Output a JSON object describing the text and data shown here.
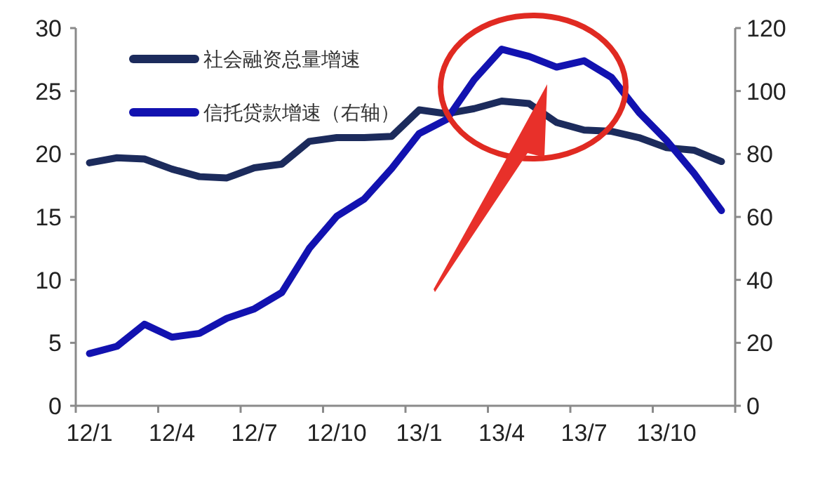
{
  "chart_data": {
    "type": "line",
    "categories": [
      "12/1",
      null,
      null,
      "12/4",
      null,
      null,
      "12/7",
      null,
      null,
      "12/10",
      null,
      null,
      "13/1",
      null,
      null,
      "13/4",
      null,
      null,
      "13/7",
      null,
      null,
      "13/10",
      null,
      null
    ],
    "series": [
      {
        "name": "社会融资总量增速",
        "color": "#1c2b5c",
        "values": [
          19.3,
          19.7,
          19.6,
          18.8,
          18.2,
          18.1,
          18.9,
          19.2,
          21.0,
          21.3,
          21.3,
          21.4,
          23.5,
          23.2,
          23.6,
          24.2,
          24.0,
          22.5,
          21.9,
          21.8,
          21.3,
          20.5,
          20.3,
          19.4
        ]
      },
      {
        "name": "信托贷款增速（右轴）",
        "color": "#1212b0",
        "axis": "y2",
        "values": [
          16.6,
          18.9,
          25.9,
          21.8,
          23.0,
          27.8,
          30.8,
          36,
          50,
          60.2,
          65.7,
          75.4,
          86.5,
          91,
          103.6,
          113.3,
          111,
          107.6,
          109.6,
          104.3,
          93.2,
          84.3,
          73.9,
          62
        ]
      }
    ],
    "ylim": [
      0,
      30
    ],
    "yticks": [
      0,
      5,
      10,
      15,
      20,
      25,
      30
    ],
    "y2lim": [
      0,
      120
    ],
    "y2ticks": [
      0,
      20,
      40,
      60,
      80,
      100,
      120
    ],
    "legend": "top left"
  }
}
